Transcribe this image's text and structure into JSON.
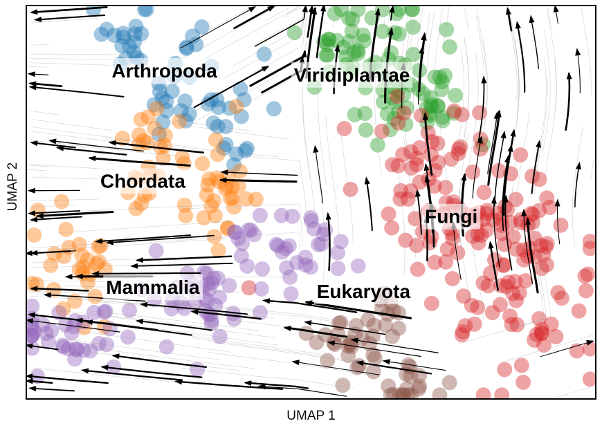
{
  "chart_data": {
    "type": "scatter",
    "subtype": "umap-embedding-with-velocity-streamlines",
    "xlabel": "UMAP 1",
    "ylabel": "UMAP 2",
    "xlim": [
      0,
      100
    ],
    "ylim": [
      0,
      100
    ],
    "grid": false,
    "legend": "none",
    "clusters": [
      {
        "name": "Arthropoda",
        "color": "#1f77b4",
        "label_pos": [
          15,
          83
        ],
        "spread": [
          6,
          12
        ],
        "centers": [
          [
            18,
            92
          ],
          [
            26,
            78
          ],
          [
            36,
            73
          ]
        ],
        "n": 60
      },
      {
        "name": "Viridiplantae",
        "color": "#2ca02c",
        "label_pos": [
          47,
          82
        ],
        "spread": [
          8,
          15
        ],
        "centers": [
          [
            63,
            82
          ],
          [
            57,
            90
          ],
          [
            70,
            77
          ]
        ],
        "n": 90
      },
      {
        "name": "Chordata",
        "color": "#ff7f0e",
        "label_pos": [
          13,
          55
        ],
        "spread": [
          6,
          12
        ],
        "centers": [
          [
            22,
            62
          ],
          [
            36,
            54
          ],
          [
            8,
            34
          ]
        ],
        "n": 85
      },
      {
        "name": "Fungi",
        "color": "#d62728",
        "label_pos": [
          70,
          46
        ],
        "spread": [
          14,
          20
        ],
        "centers": [
          [
            82,
            42
          ],
          [
            72,
            55
          ],
          [
            88,
            25
          ]
        ],
        "n": 170
      },
      {
        "name": "Mammalia",
        "color": "#9467bd",
        "label_pos": [
          14,
          28
        ],
        "spread": [
          10,
          10
        ],
        "centers": [
          [
            30,
            25
          ],
          [
            8,
            16
          ],
          [
            46,
            38
          ]
        ],
        "n": 110
      },
      {
        "name": "Eukaryota",
        "color": "#8c564b",
        "label_pos": [
          51,
          27
        ],
        "spread": [
          5,
          8
        ],
        "centers": [
          [
            55,
            14
          ],
          [
            68,
            4
          ],
          [
            62,
            20
          ]
        ],
        "n": 55
      }
    ]
  }
}
